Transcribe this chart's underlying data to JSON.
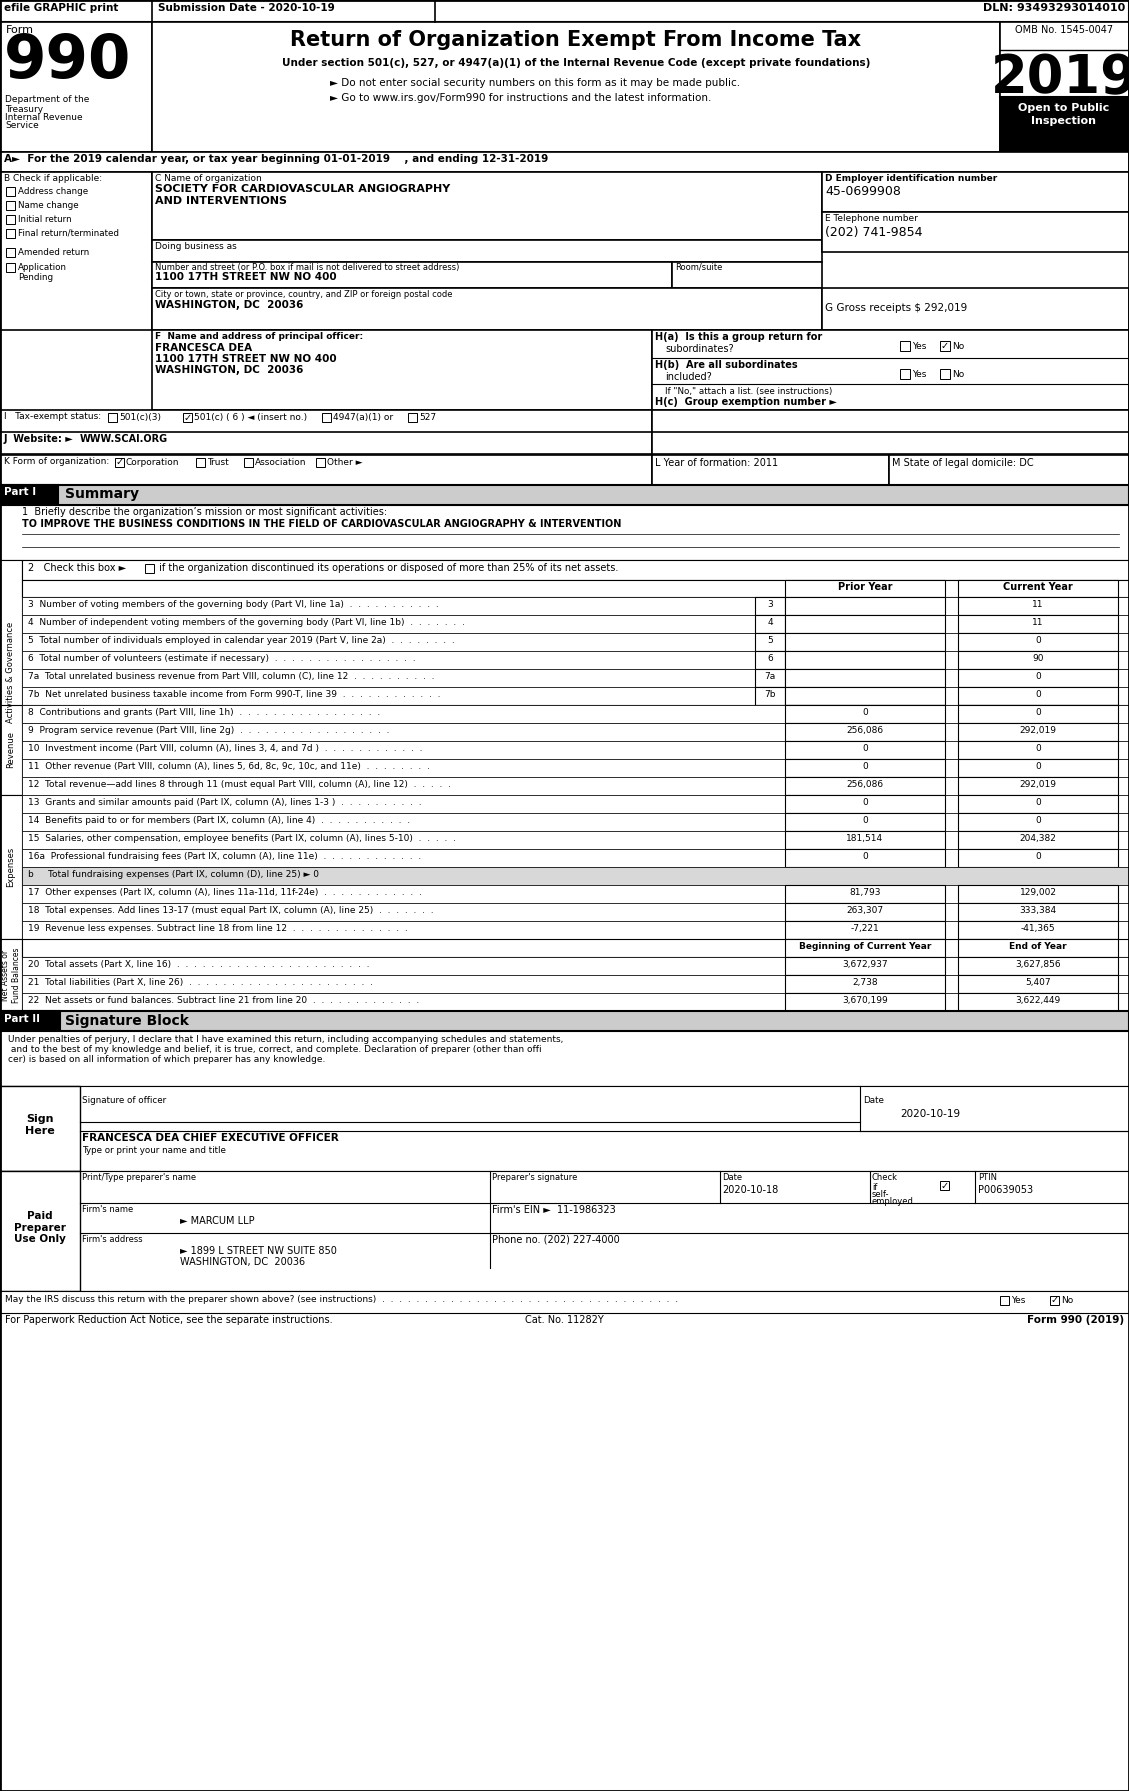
{
  "header_bar": {
    "efile_text": "efile GRAPHIC print",
    "submission_text": "Submission Date - 2020-10-19",
    "dln_text": "DLN: 93493293014010"
  },
  "form_title": "Return of Organization Exempt From Income Tax",
  "form_number": "990",
  "omb_number": "OMB No. 1545-0047",
  "year": "2019",
  "open_to_public": "Open to Public\nInspection",
  "dept_text": "Department of the\nTreasury\nInternal Revenue\nService",
  "under_section": "Under section 501(c), 527, or 4947(a)(1) of the Internal Revenue Code (except private foundations)",
  "bullet1": "► Do not enter social security numbers on this form as it may be made public.",
  "bullet2": "► Go to www.irs.gov/Form990 for instructions and the latest information.",
  "section_a": "A►  For the 2019 calendar year, or tax year beginning 01-01-2019    , and ending 12-31-2019",
  "check_if": "B Check if applicable:",
  "org_name_label": "C Name of organization",
  "org_name1": "SOCIETY FOR CARDIOVASCULAR ANGIOGRAPHY",
  "org_name2": "AND INTERVENTIONS",
  "doing_business": "Doing business as",
  "street_label": "Number and street (or P.O. box if mail is not delivered to street address)",
  "street": "1100 17TH STREET NW NO 400",
  "room_suite": "Room/suite",
  "city_label": "City or town, state or province, country, and ZIP or foreign postal code",
  "city": "WASHINGTON, DC  20036",
  "ein_label": "D Employer identification number",
  "ein": "45-0699908",
  "phone_label": "E Telephone number",
  "phone": "(202) 741-9854",
  "gross_receipts": "G Gross receipts $ 292,019",
  "principal_officer_label": "F  Name and address of principal officer:",
  "principal_officer1": "FRANCESCA DEA",
  "principal_officer2": "1100 17TH STREET NW NO 400",
  "principal_officer3": "WASHINGTON, DC  20036",
  "ha_label": "H(a)  Is this a group return for",
  "ha_sub": "subordinates?",
  "hb_label": "H(b)  Are all subordinates",
  "hb_sub": "included?",
  "if_no": "If \"No,\" attach a list. (see instructions)",
  "hc_label": "H(c)  Group exemption number ►",
  "website": "WWW.SCAI.ORG",
  "l_year": "L Year of formation: 2011",
  "m_state": "M State of legal domicile: DC",
  "part1_label": "Part I",
  "part1_title": "Summary",
  "line1_label": "1  Briefly describe the organization’s mission or most significant activities:",
  "line1_text": "TO IMPROVE THE BUSINESS CONDITIONS IN THE FIELD OF CARDIOVASCULAR ANGIOGRAPHY & INTERVENTION",
  "lines_gov": [
    {
      "num": "3",
      "text": "Number of voting members of the governing body (Part VI, line 1a)  .  .  .  .  .  .  .  .  .  .  .",
      "col": "3",
      "current": "11"
    },
    {
      "num": "4",
      "text": "Number of independent voting members of the governing body (Part VI, line 1b)  .  .  .  .  .  .  .",
      "col": "4",
      "current": "11"
    },
    {
      "num": "5",
      "text": "Total number of individuals employed in calendar year 2019 (Part V, line 2a)  .  .  .  .  .  .  .  .",
      "col": "5",
      "current": "0"
    },
    {
      "num": "6",
      "text": "Total number of volunteers (estimate if necessary)  .  .  .  .  .  .  .  .  .  .  .  .  .  .  .  .  .",
      "col": "6",
      "current": "90"
    },
    {
      "num": "7a",
      "text": "Total unrelated business revenue from Part VIII, column (C), line 12  .  .  .  .  .  .  .  .  .  .",
      "col": "7a",
      "current": "0"
    },
    {
      "num": "7b",
      "text": "Net unrelated business taxable income from Form 990-T, line 39  .  .  .  .  .  .  .  .  .  .  .  .",
      "col": "7b",
      "current": "0"
    }
  ],
  "lines_rev": [
    {
      "num": "8",
      "text": "Contributions and grants (Part VIII, line 1h)  .  .  .  .  .  .  .  .  .  .  .  .  .  .  .  .  .",
      "prior": "0",
      "current": "0"
    },
    {
      "num": "9",
      "text": "Program service revenue (Part VIII, line 2g)  .  .  .  .  .  .  .  .  .  .  .  .  .  .  .  .  .  .",
      "prior": "256,086",
      "current": "292,019"
    },
    {
      "num": "10",
      "text": "Investment income (Part VIII, column (A), lines 3, 4, and 7d )  .  .  .  .  .  .  .  .  .  .  .  .",
      "prior": "0",
      "current": "0"
    },
    {
      "num": "11",
      "text": "Other revenue (Part VIII, column (A), lines 5, 6d, 8c, 9c, 10c, and 11e)  .  .  .  .  .  .  .  .",
      "prior": "0",
      "current": "0"
    },
    {
      "num": "12",
      "text": "Total revenue—add lines 8 through 11 (must equal Part VIII, column (A), line 12)  .  .  .  .  .",
      "prior": "256,086",
      "current": "292,019"
    }
  ],
  "lines_exp": [
    {
      "num": "13",
      "text": "Grants and similar amounts paid (Part IX, column (A), lines 1-3 )  .  .  .  .  .  .  .  .  .  .",
      "prior": "0",
      "current": "0"
    },
    {
      "num": "14",
      "text": "Benefits paid to or for members (Part IX, column (A), line 4)  .  .  .  .  .  .  .  .  .  .  .",
      "prior": "0",
      "current": "0"
    },
    {
      "num": "15",
      "text": "Salaries, other compensation, employee benefits (Part IX, column (A), lines 5-10)  .  .  .  .  .",
      "prior": "181,514",
      "current": "204,382"
    },
    {
      "num": "16a",
      "text": "Professional fundraising fees (Part IX, column (A), line 11e)  .  .  .  .  .  .  .  .  .  .  .  .",
      "prior": "0",
      "current": "0"
    },
    {
      "num": "b",
      "text": "   Total fundraising expenses (Part IX, column (D), line 25) ► 0",
      "prior": "",
      "current": "",
      "gray": true
    },
    {
      "num": "17",
      "text": "Other expenses (Part IX, column (A), lines 11a-11d, 11f-24e)  .  .  .  .  .  .  .  .  .  .  .  .",
      "prior": "81,793",
      "current": "129,002"
    },
    {
      "num": "18",
      "text": "Total expenses. Add lines 13-17 (must equal Part IX, column (A), line 25)  .  .  .  .  .  .  .",
      "prior": "263,307",
      "current": "333,384"
    },
    {
      "num": "19",
      "text": "Revenue less expenses. Subtract line 18 from line 12  .  .  .  .  .  .  .  .  .  .  .  .  .  .",
      "prior": "-7,221",
      "current": "-41,365"
    }
  ],
  "lines_net": [
    {
      "num": "20",
      "text": "Total assets (Part X, line 16)  .  .  .  .  .  .  .  .  .  .  .  .  .  .  .  .  .  .  .  .  .  .  .",
      "prior": "3,672,937",
      "current": "3,627,856"
    },
    {
      "num": "21",
      "text": "Total liabilities (Part X, line 26)  .  .  .  .  .  .  .  .  .  .  .  .  .  .  .  .  .  .  .  .  .  .",
      "prior": "2,738",
      "current": "5,407"
    },
    {
      "num": "22",
      "text": "Net assets or fund balances. Subtract line 21 from line 20  .  .  .  .  .  .  .  .  .  .  .  .  .",
      "prior": "3,670,199",
      "current": "3,622,449"
    }
  ],
  "signature_text": "Under penalties of perjury, I declare that I have examined this return, including accompanying schedules and statements, and to the best of my knowledge and belief, it is true, correct, and complete. Declaration of preparer (other than officer) is based on all information of which preparer has any knowledge.",
  "signature_date": "2020-10-19",
  "officer_name": "FRANCESCA DEA CHIEF EXECUTIVE OFFICER",
  "preparer_date": "2020-10-18",
  "ptin": "P00639053",
  "firm_name": "► MARCUM LLP",
  "firms_ein": "11-1986323",
  "firm_address": "► 1899 L STREET NW SUITE 850",
  "firm_city": "WASHINGTON, DC  20036",
  "phone_no": "(202) 227-4000",
  "bottom_text1": "May the IRS discuss this return with the preparer shown above? (see instructions)  .  .  .  .  .  .  .  .  .  .  .  .  .  .  .  .  .  .  .  .  .  .  .  .  .  .  .  .  .  .  .  .  .  .  .",
  "bottom_cat": "Cat. No. 11282Y",
  "bottom_form": "Form 990 (2019)"
}
